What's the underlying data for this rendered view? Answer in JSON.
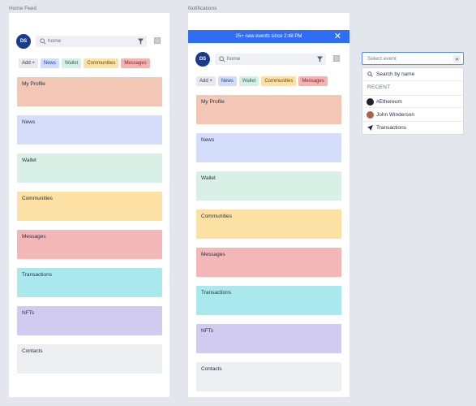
{
  "frames": {
    "home_feed_label": "Home Feed",
    "notifications_label": "Notifications"
  },
  "banner": {
    "text": "25+ new events since 2:48 PM",
    "close_icon": "close-icon",
    "color": "#2f6df5"
  },
  "topbar": {
    "avatar_initials": "DS",
    "search_placeholder": "home"
  },
  "chips": {
    "add": "Add +",
    "news": "News",
    "wallet": "Wallet",
    "communities": "Communities",
    "messages": "Messages"
  },
  "cards": {
    "profile": "My Profile",
    "news": "News",
    "wallet": "Wallet",
    "communities": "Communities",
    "messages": "Messages",
    "transactions": "Transactions",
    "nfts": "NFTs",
    "contacts": "Contacts"
  },
  "event_select": {
    "placeholder": "Select event",
    "search_placeholder": "Search by name",
    "recent_label": "RECENT",
    "items": [
      "#Ethereum",
      "John Winderson",
      "Transactions"
    ]
  }
}
